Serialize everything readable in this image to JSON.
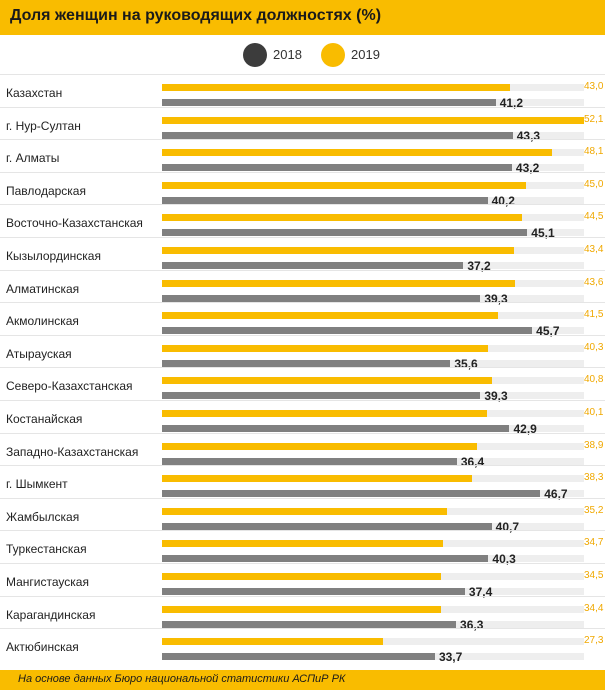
{
  "header": {
    "title": "Доля женщин на руководящих должностях (%)"
  },
  "legend": [
    {
      "label": "2018",
      "color": "#3c3c3c"
    },
    {
      "label": "2019",
      "color": "#f9bc00"
    }
  ],
  "colors": {
    "accent": "#f9bc00",
    "bar2018": "#808080",
    "track": "#eeeeee",
    "value2019": "#f0a800"
  },
  "chart_data": {
    "type": "bar",
    "orientation": "horizontal",
    "title": "Доля женщин на руководящих должностях (%)",
    "xlim": [
      0,
      52.1
    ],
    "categories": [
      "Казахстан",
      "г. Нур-Султан",
      "г. Алматы",
      "Павлодарская",
      "Восточно-Казахстанская",
      "Кызылординская",
      "Алматинская",
      "Акмолинская",
      "Атырауская",
      "Северо-Казахстанская",
      "Костанайская",
      "Западно-Казахстанская",
      "г. Шымкент",
      "Жамбылская",
      "Туркестанская",
      "Мангистауская",
      "Карагандинская",
      "Актюбинская"
    ],
    "series": [
      {
        "name": "2019",
        "values": [
          43.0,
          52.1,
          48.1,
          45.0,
          44.5,
          43.4,
          43.6,
          41.5,
          40.3,
          40.8,
          40.1,
          38.9,
          38.3,
          35.2,
          34.7,
          34.5,
          34.4,
          27.3
        ],
        "labels": [
          "43,0",
          "52,1",
          "48,1",
          "45,0",
          "44,5",
          "43,4",
          "43,6",
          "41,5",
          "40,3",
          "40,8",
          "40,1",
          "38,9",
          "38,3",
          "35,2",
          "34,7",
          "34,5",
          "34,4",
          "27,3"
        ]
      },
      {
        "name": "2018",
        "values": [
          41.2,
          43.3,
          43.2,
          40.2,
          45.1,
          37.2,
          39.3,
          45.7,
          35.6,
          39.3,
          42.9,
          36.4,
          46.7,
          40.7,
          40.3,
          37.4,
          36.3,
          33.7
        ],
        "labels": [
          "41,2",
          "43,3",
          "43,2",
          "40,2",
          "45,1",
          "37,2",
          "39,3",
          "45,7",
          "35,6",
          "39,3",
          "42,9",
          "36,4",
          "46,7",
          "40,7",
          "40,3",
          "37,4",
          "36,3",
          "33,7"
        ]
      }
    ]
  },
  "footer": {
    "source": "На основе данных Бюро национальной статистики АСПиР РК"
  }
}
